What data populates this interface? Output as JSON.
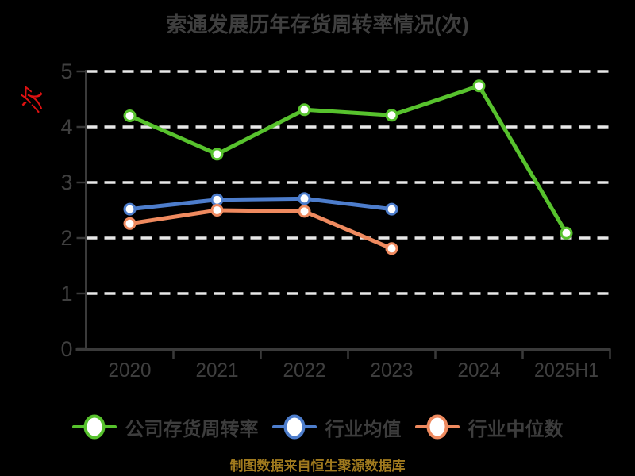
{
  "title": "索通发展历年存货周转率情况(次)",
  "y_axis": {
    "unit_label": "次",
    "unit_color": "#dd1111"
  },
  "footer": {
    "credit": "制图数据来自恒生聚源数据库",
    "color": "#a07a1e"
  },
  "colors": {
    "background": "#000000",
    "label_text": "#3f3f3f",
    "grid_line": "#e8e8e8",
    "axis_line": "#3a3a3a"
  },
  "chart_data": {
    "type": "line",
    "title": "索通发展历年存货周转率情况(次)",
    "categories": [
      "2020",
      "2021",
      "2022",
      "2023",
      "2024",
      "2025H1"
    ],
    "y_ticks": [
      0,
      1,
      2,
      3,
      4,
      5
    ],
    "ylim": [
      0,
      5
    ],
    "grid": "horizontal-dashed",
    "legend_position": "bottom",
    "marker": "circle-white-fill",
    "series": [
      {
        "name": "公司存货周转率",
        "color": "#57c22d",
        "values": [
          4.2,
          3.51,
          4.31,
          4.21,
          4.74,
          2.09
        ]
      },
      {
        "name": "行业均值",
        "color": "#4d7dcc",
        "values": [
          2.52,
          2.69,
          2.71,
          2.52,
          null,
          null
        ]
      },
      {
        "name": "行业中位数",
        "color": "#ef8a5f",
        "values": [
          2.26,
          2.5,
          2.48,
          1.81,
          null,
          null
        ]
      }
    ]
  }
}
